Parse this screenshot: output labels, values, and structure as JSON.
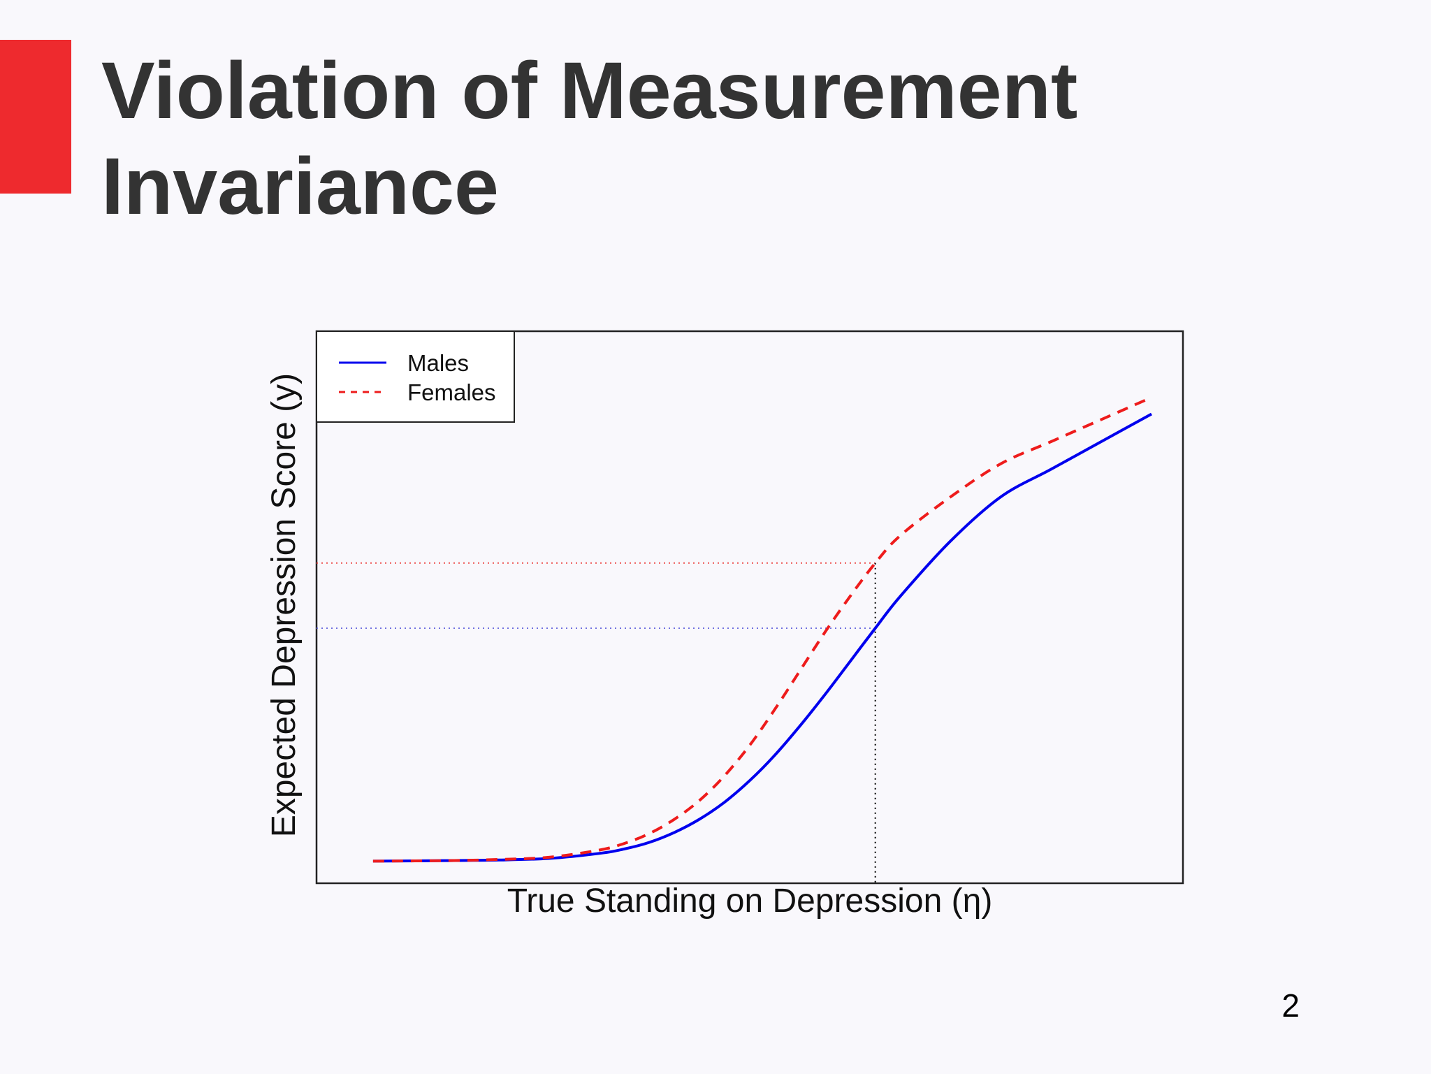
{
  "slide": {
    "title_line1": "Violation of Measurement",
    "title_line2": "Invariance",
    "page_number": "2",
    "accent_color": "#ee2a2e"
  },
  "chart_data": {
    "type": "line",
    "title": "",
    "xlabel": "True Standing on Depression (η)",
    "ylabel": "Expected Depression Score (y)",
    "xlim": [
      -4,
      4
    ],
    "ylim": [
      0,
      1
    ],
    "grid": false,
    "legend_position": "top-left",
    "x_ticks": [],
    "y_ticks": [],
    "series": [
      {
        "name": "Males",
        "color": "#0000ee",
        "dash": "solid",
        "x": [
          -3.75,
          -3.0,
          -2.5,
          -2.0,
          -1.5,
          -1.25,
          -1.0,
          -0.75,
          -0.5,
          -0.25,
          0.0,
          0.25,
          0.5,
          0.75,
          1.0,
          1.25,
          1.5,
          2.0,
          2.5,
          3.0,
          3.5,
          4.0
        ],
        "y": [
          0.04,
          0.041,
          0.042,
          0.045,
          0.054,
          0.062,
          0.074,
          0.092,
          0.116,
          0.147,
          0.186,
          0.232,
          0.285,
          0.342,
          0.402,
          0.462,
          0.52,
          0.62,
          0.7,
          0.75,
          0.8,
          0.85
        ]
      },
      {
        "name": "Females",
        "color": "#ee1c1c",
        "dash": "dashed",
        "x": [
          -3.75,
          -3.0,
          -2.5,
          -2.0,
          -1.5,
          -1.25,
          -1.0,
          -0.75,
          -0.5,
          -0.25,
          0.0,
          0.25,
          0.5,
          0.75,
          1.0,
          1.25,
          1.5,
          2.0,
          2.5,
          3.0,
          3.5,
          4.0
        ],
        "y": [
          0.04,
          0.041,
          0.043,
          0.047,
          0.06,
          0.072,
          0.09,
          0.116,
          0.15,
          0.195,
          0.25,
          0.315,
          0.385,
          0.455,
          0.52,
          0.58,
          0.63,
          0.7,
          0.76,
          0.8,
          0.84,
          0.88
        ]
      }
    ],
    "reference_lines": {
      "x_eta": 1.25,
      "males_y_at_eta": 0.462,
      "females_y_at_eta": 0.58,
      "vertical_color": "#000000",
      "males_color": "#7070e0",
      "females_color": "#ee5050"
    }
  }
}
